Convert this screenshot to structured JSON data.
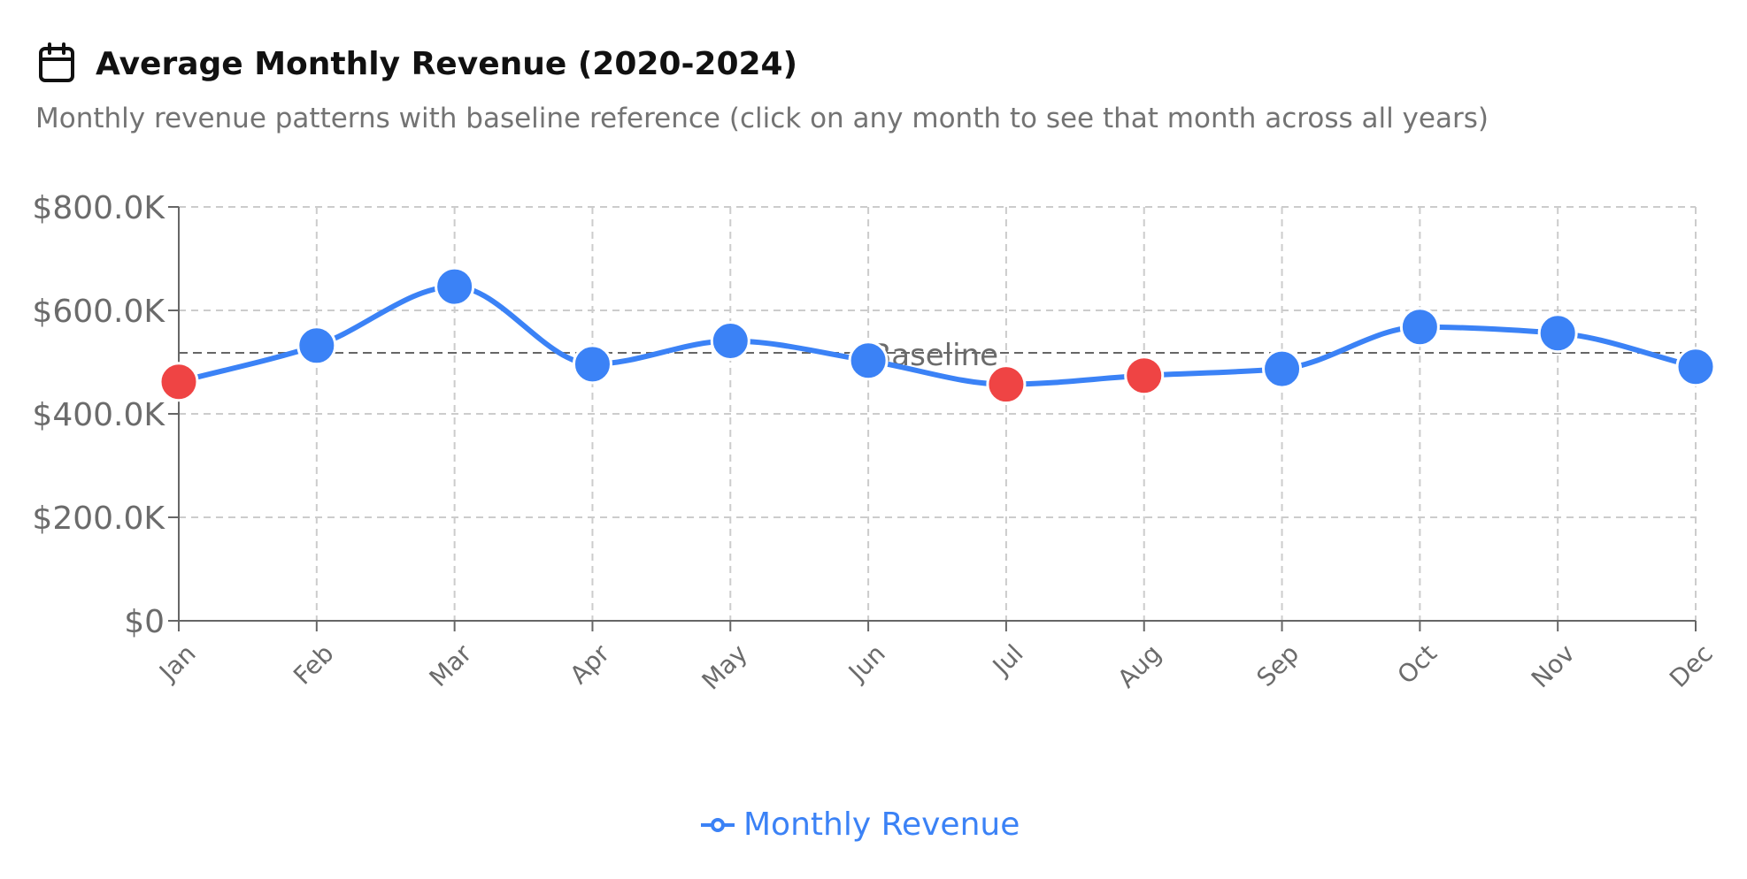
{
  "header": {
    "title": "Average Monthly Revenue (2020-2024)",
    "subtitle": "Monthly revenue patterns with baseline reference (click on any month to see that month across all years)",
    "icon": "calendar-icon"
  },
  "legend": {
    "label": "Monthly Revenue",
    "icon": "line-marker-icon"
  },
  "colors": {
    "line": "#3b82f6",
    "point_normal": "#3b82f6",
    "point_below": "#ef4444",
    "grid": "#cccccc",
    "axis": "#666666",
    "baseline": "#666666"
  },
  "chart_data": {
    "type": "line",
    "categories": [
      "Jan",
      "Feb",
      "Mar",
      "Apr",
      "May",
      "Jun",
      "Jul",
      "Aug",
      "Sep",
      "Oct",
      "Nov",
      "Dec"
    ],
    "series": [
      {
        "name": "Monthly Revenue",
        "values": [
          462000,
          532000,
          646000,
          496000,
          541000,
          503000,
          457000,
          474000,
          487000,
          568000,
          556000,
          491000
        ]
      }
    ],
    "highlighted_below_baseline": [
      "Jan",
      "Jul",
      "Aug"
    ],
    "baseline": {
      "label": "Baseline",
      "value": 518000
    },
    "ylim": [
      0,
      800000
    ],
    "yticks": [
      0,
      200000,
      400000,
      600000,
      800000
    ],
    "ytick_labels": [
      "$0",
      "$200.0K",
      "$400.0K",
      "$600.0K",
      "$800.0K"
    ],
    "grid": true,
    "legend_position": "bottom-center"
  }
}
